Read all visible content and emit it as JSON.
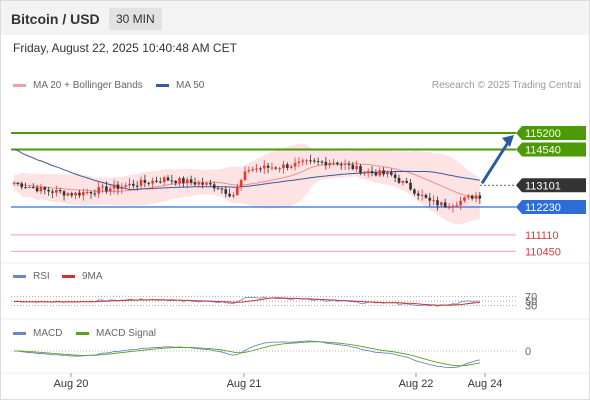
{
  "header": {
    "title": "Bitcoin / USD",
    "timeframe": "30 MIN"
  },
  "timestamp": "Friday, August 22, 2025 10:40:48 AM CET",
  "legend": {
    "ma_bb": "MA 20 + Bollinger Bands",
    "ma50": "MA 50"
  },
  "credit": "Research © 2025 Trading Central",
  "rsi_legend": {
    "rsi": "RSI",
    "ma": "9MA"
  },
  "macd_legend": {
    "macd": "MACD",
    "signal": "MACD Signal"
  },
  "colors": {
    "bull": "#e53935",
    "bear": "#333333",
    "bb_fill": "#fde3e3",
    "ma20": "#ef8f8f",
    "ma50": "#3b5a99",
    "resistance": "#4e9a06",
    "support": "#2f6dd6",
    "minor": "#f4a4a4",
    "current": "#333333",
    "arrow": "#2c5aa0",
    "rsi": "#6d84c9",
    "rsi_ma": "#d32f2f",
    "macd": "#6d84c9",
    "macd_signal": "#58a322"
  },
  "chart_data": {
    "type": "candlestick",
    "x_ticks": [
      "Aug 20",
      "Aug 21",
      "Aug 22",
      "Aug 24"
    ],
    "ylim": [
      110000,
      116500
    ],
    "levels": [
      {
        "value": 115200,
        "label": "115200",
        "kind": "resistance"
      },
      {
        "value": 114540,
        "label": "114540",
        "kind": "resistance"
      },
      {
        "value": 113101,
        "label": "113101",
        "kind": "current"
      },
      {
        "value": 112230,
        "label": "112230",
        "kind": "support"
      },
      {
        "value": 111110,
        "label": "111110",
        "kind": "minor"
      },
      {
        "value": 110450,
        "label": "110450",
        "kind": "minor"
      }
    ],
    "forecast": {
      "from": 113101,
      "to": 115200,
      "direction": "up"
    },
    "rsi_levels": [
      "70",
      "50",
      "30"
    ],
    "macd_levels": [
      "0"
    ]
  }
}
